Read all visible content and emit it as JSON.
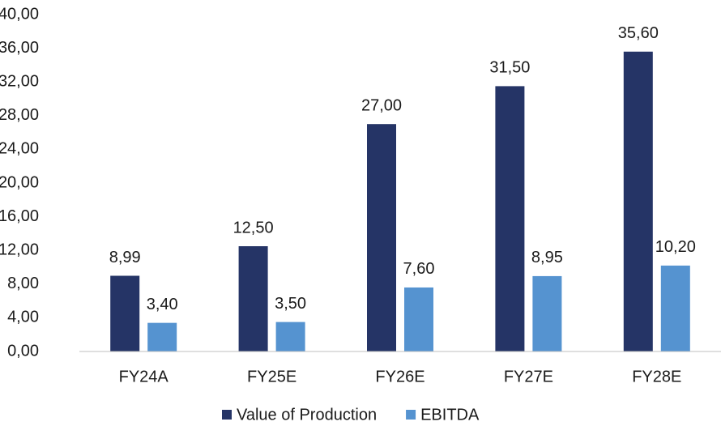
{
  "chart_data": {
    "type": "bar",
    "categories": [
      "FY24A",
      "FY25E",
      "FY26E",
      "FY27E",
      "FY28E"
    ],
    "series": [
      {
        "name": "Value of Production",
        "color": "#253466",
        "values": [
          8.99,
          12.5,
          27,
          31.5,
          35.6
        ],
        "value_labels": [
          "8,99",
          "12,50",
          "27,00",
          "31,50",
          "35,60"
        ]
      },
      {
        "name": "EBITDA",
        "color": "#5593d0",
        "values": [
          3.4,
          3.5,
          7.6,
          8.95,
          10.2
        ],
        "value_labels": [
          "3,40",
          "3,50",
          "7,60",
          "8,95",
          "10,20"
        ]
      }
    ],
    "ylim": [
      0,
      40
    ],
    "yticks": [
      {
        "value": 0,
        "label": "0,00"
      },
      {
        "value": 4,
        "label": "4,00"
      },
      {
        "value": 8,
        "label": "8,00"
      },
      {
        "value": 12,
        "label": "12,00"
      },
      {
        "value": 16,
        "label": "16,00"
      },
      {
        "value": 20,
        "label": "20,00"
      },
      {
        "value": 24,
        "label": "24,00"
      },
      {
        "value": 28,
        "label": "28,00"
      },
      {
        "value": 32,
        "label": "32,00"
      },
      {
        "value": 36,
        "label": "36,00"
      },
      {
        "value": 40,
        "label": "40,00"
      }
    ],
    "grid": false,
    "legend": "bottom"
  }
}
